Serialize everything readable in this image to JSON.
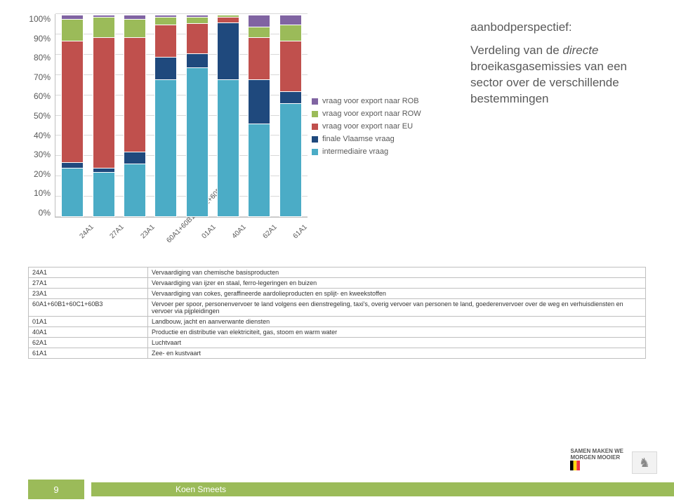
{
  "chart": {
    "type": "stacked-bar",
    "y_ticks": [
      "100%",
      "90%",
      "80%",
      "70%",
      "60%",
      "50%",
      "40%",
      "30%",
      "20%",
      "10%",
      "0%"
    ],
    "categories": [
      "24A1",
      "27A1",
      "23A1",
      "60A1+60B1+60C1+60B3",
      "01A1",
      "40A1",
      "62A1",
      "61A1"
    ],
    "series": [
      {
        "key": "intermediaire",
        "label": "intermediaire vraag",
        "color": "#4bacc6"
      },
      {
        "key": "finale",
        "label": "finale Vlaamse vraag",
        "color": "#1f497d"
      },
      {
        "key": "eu",
        "label": "vraag voor export naar EU",
        "color": "#c0504d"
      },
      {
        "key": "row",
        "label": "vraag voor export naar ROW",
        "color": "#9bbb59"
      },
      {
        "key": "rob",
        "label": "vraag voor export naar ROB",
        "color": "#8064a2"
      }
    ],
    "values_pct": {
      "24A1": {
        "intermediaire": 24,
        "finale": 3,
        "eu": 60,
        "row": 11,
        "rob": 2
      },
      "27A1": {
        "intermediaire": 22,
        "finale": 2,
        "eu": 65,
        "row": 10,
        "rob": 1
      },
      "23A1": {
        "intermediaire": 26,
        "finale": 6,
        "eu": 57,
        "row": 9,
        "rob": 2
      },
      "60A1+60B1+60C1+60B3": {
        "intermediaire": 68,
        "finale": 11,
        "eu": 16,
        "row": 4,
        "rob": 1
      },
      "01A1": {
        "intermediaire": 74,
        "finale": 7,
        "eu": 15,
        "row": 3,
        "rob": 1
      },
      "40A1": {
        "intermediaire": 68,
        "finale": 28,
        "eu": 3,
        "row": 1,
        "rob": 0
      },
      "62A1": {
        "intermediaire": 46,
        "finale": 22,
        "eu": 21,
        "row": 5,
        "rob": 6
      },
      "61A1": {
        "intermediaire": 56,
        "finale": 6,
        "eu": 25,
        "row": 8,
        "rob": 5
      }
    },
    "grid_color": "#d9d9d9",
    "axis_color": "#bfbfbf",
    "tick_fontsize": 12
  },
  "side_text": {
    "line1": "aanbodperspectief:",
    "line2_a": "Verdeling van de ",
    "line2_b_italic": "directe",
    "line2_c": " broeikasgasemissies van een sector over de verschillende bestemmingen"
  },
  "table": {
    "rows": [
      {
        "code": "24A1",
        "desc": "Vervaardiging van chemische basisproducten"
      },
      {
        "code": "27A1",
        "desc": "Vervaardiging van ijzer en staal, ferro-legeringen en buizen"
      },
      {
        "code": "23A1",
        "desc": "Vervaardiging van cokes, geraffineerde aardolieproducten en splijt- en kweekstoffen"
      },
      {
        "code": "60A1+60B1+60C1+60B3",
        "desc": "Vervoer per spoor, personenvervoer te land volgens een dienstregeling, taxi's, overig vervoer van personen te land, goederenvervoer over de weg en verhuisdiensten en vervoer via pijpleidingen"
      },
      {
        "code": "01A1",
        "desc": "Landbouw, jacht en aanverwante diensten"
      },
      {
        "code": "40A1",
        "desc": "Productie en distributie van elektriciteit, gas, stoom en warm water"
      },
      {
        "code": "62A1",
        "desc": "Luchtvaart"
      },
      {
        "code": "61A1",
        "desc": "Zee- en kustvaart"
      }
    ]
  },
  "footer": {
    "page": "9",
    "author": "Koen Smeets",
    "slogan_l1": "SAMEN MAKEN WE",
    "slogan_l2": "MORGEN MOOIER"
  }
}
